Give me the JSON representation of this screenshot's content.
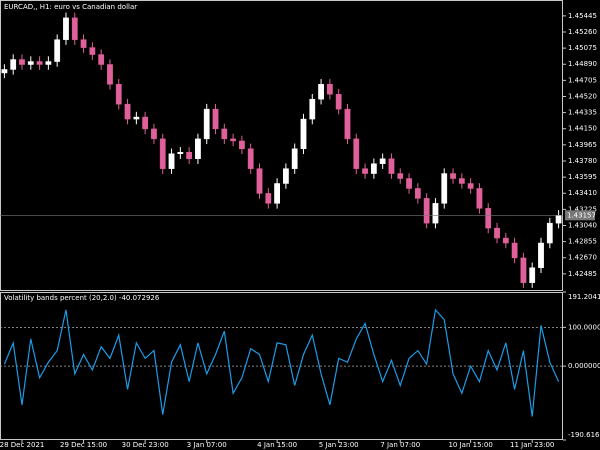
{
  "chart_data": [
    {
      "type": "candlestick",
      "title": "EURCAD,, H1:  euro vs Canadian dollar",
      "categories": [
        null,
        null,
        "28 Dec 2021",
        null,
        null,
        null,
        null,
        null,
        null,
        "29 Dec 15:00",
        null,
        null,
        null,
        null,
        null,
        null,
        "30 Dec 23:00",
        null,
        null,
        null,
        null,
        null,
        null,
        "3 Jan 07:00",
        null,
        null,
        null,
        null,
        null,
        null,
        null,
        "4 Jan 15:00",
        null,
        null,
        null,
        null,
        null,
        null,
        "5 Jan 23:00",
        null,
        null,
        null,
        null,
        null,
        null,
        "7 Jan 07:00",
        null,
        null,
        null,
        null,
        null,
        null,
        null,
        "10 Jan 15:00",
        null,
        null,
        null,
        null,
        null,
        null,
        "11 Jan 23:00",
        null,
        null,
        null
      ],
      "open": [
        1.4479,
        1.4483,
        1.44944,
        1.44887,
        1.44921,
        1.44887,
        1.44921,
        1.45172,
        1.45422,
        1.45172,
        1.45081,
        1.45001,
        1.44887,
        1.4466,
        1.44432,
        1.44261,
        1.44284,
        1.44148,
        1.44034,
        1.43692,
        1.43863,
        1.4388,
        1.43806,
        1.44034,
        1.44375,
        1.44148,
        1.44034,
        1.4401,
        1.4392,
        1.43692,
        1.43408,
        1.43294,
        1.43522,
        1.43692,
        1.4392,
        1.44261,
        1.44489,
        1.4466,
        1.44546,
        1.44375,
        1.44034,
        1.43692,
        1.43636,
        1.43749,
        1.43806,
        1.43636,
        1.43579,
        1.43465,
        1.43351,
        1.43067,
        1.43294,
        1.43636,
        1.43579,
        1.43522,
        1.43465,
        1.43237,
        1.4301,
        1.42896,
        1.42839,
        1.42668,
        1.42384,
        1.42555,
        1.42839,
        1.43067
      ],
      "high": [
        1.4489,
        1.45004,
        1.45004,
        1.44981,
        1.44981,
        1.44981,
        1.45232,
        1.45482,
        1.45482,
        1.45232,
        1.45141,
        1.45061,
        1.44947,
        1.4472,
        1.44492,
        1.44344,
        1.44344,
        1.44208,
        1.44094,
        1.43923,
        1.4394,
        1.4394,
        1.44094,
        1.44435,
        1.44435,
        1.44208,
        1.44094,
        1.4407,
        1.4398,
        1.43752,
        1.43468,
        1.43582,
        1.43752,
        1.4398,
        1.44321,
        1.44549,
        1.4472,
        1.4472,
        1.44606,
        1.44435,
        1.44094,
        1.43752,
        1.43809,
        1.43866,
        1.43866,
        1.43696,
        1.43639,
        1.43525,
        1.43411,
        1.43354,
        1.43696,
        1.43696,
        1.43639,
        1.43582,
        1.43525,
        1.43297,
        1.4307,
        1.42956,
        1.42899,
        1.42728,
        1.42615,
        1.42899,
        1.43127,
        1.43217
      ],
      "low": [
        1.4473,
        1.4477,
        1.44827,
        1.44827,
        1.44827,
        1.44827,
        1.44861,
        1.45112,
        1.45112,
        1.45021,
        1.44941,
        1.44827,
        1.446,
        1.44372,
        1.44201,
        1.44201,
        1.44088,
        1.43974,
        1.43632,
        1.43632,
        1.43803,
        1.43746,
        1.43746,
        1.43974,
        1.44088,
        1.43974,
        1.4395,
        1.4386,
        1.43632,
        1.43348,
        1.43234,
        1.43234,
        1.43462,
        1.43632,
        1.4386,
        1.44201,
        1.44429,
        1.44486,
        1.44315,
        1.43974,
        1.43632,
        1.43576,
        1.43576,
        1.43689,
        1.43576,
        1.43519,
        1.43405,
        1.43291,
        1.43007,
        1.43007,
        1.43234,
        1.43519,
        1.43462,
        1.43405,
        1.43177,
        1.4295,
        1.42836,
        1.42779,
        1.42608,
        1.42324,
        1.42324,
        1.42495,
        1.42779,
        1.43007
      ],
      "close": [
        1.4483,
        1.44944,
        1.44887,
        1.44921,
        1.44887,
        1.44921,
        1.45172,
        1.45422,
        1.45172,
        1.45081,
        1.45001,
        1.44887,
        1.4466,
        1.44432,
        1.44261,
        1.44284,
        1.44148,
        1.44034,
        1.43692,
        1.43863,
        1.4388,
        1.43806,
        1.44034,
        1.44375,
        1.44148,
        1.44034,
        1.4401,
        1.4392,
        1.43692,
        1.43408,
        1.43294,
        1.43522,
        1.43692,
        1.4392,
        1.44261,
        1.44489,
        1.4466,
        1.44546,
        1.44375,
        1.44034,
        1.43692,
        1.43636,
        1.43749,
        1.43806,
        1.43636,
        1.43579,
        1.43465,
        1.43351,
        1.43067,
        1.43294,
        1.43636,
        1.43579,
        1.43522,
        1.43465,
        1.43237,
        1.4301,
        1.42896,
        1.42839,
        1.42668,
        1.42384,
        1.42555,
        1.42839,
        1.43067,
        1.43157
      ],
      "up_color": "#ffffff",
      "down_color": "#e0609a",
      "last_price": 1.43157,
      "ylim": [
        1.423,
        1.45627
      ],
      "yticks": [
        1.45445,
        {
          "value": 1.4526,
          "label": "1.45260"
        },
        1.45075,
        {
          "value": 1.4489,
          "label": "1.44890"
        },
        1.44705,
        {
          "value": 1.4452,
          "label": "1.44520"
        },
        1.44335,
        {
          "value": 1.4415,
          "label": "1.44150"
        },
        1.43965,
        {
          "value": 1.4378,
          "label": "1.43780"
        },
        1.43595,
        {
          "value": 1.4341,
          "label": "1.43410"
        },
        1.43225,
        {
          "value": 1.4304,
          "label": "1.43040"
        },
        1.42855,
        {
          "value": 1.4267,
          "label": "1.42670"
        },
        1.42485
      ]
    },
    {
      "type": "line",
      "title": "Volatility bands percent (20,2.0) -40.072926",
      "series": [
        {
          "name": "Volatility bands percent",
          "color": "#1c9ce8",
          "values": [
            5,
            60,
            -100,
            70,
            -30,
            10,
            40,
            145,
            -20,
            30,
            -10,
            50,
            20,
            80,
            -60,
            60,
            20,
            40,
            -125,
            10,
            55,
            -40,
            60,
            -20,
            30,
            90,
            -70,
            -30,
            45,
            30,
            -40,
            60,
            55,
            -50,
            30,
            80,
            -20,
            -100,
            20,
            10,
            70,
            110,
            30,
            -40,
            15,
            -50,
            20,
            40,
            5,
            145,
            120,
            -20,
            -70,
            0,
            -40,
            40,
            -10,
            60,
            -60,
            40,
            -130,
            105,
            10,
            -40
          ]
        }
      ],
      "levels": [
        {
          "value": 100,
          "label": "100.000000"
        },
        {
          "value": 0,
          "label": "0.000000"
        }
      ],
      "ylim": [
        -190.616327,
        191.204172
      ],
      "yticks": [
        {
          "value": 191.204172,
          "label": "191.204172"
        },
        {
          "value": 100,
          "label": "100.000000"
        },
        {
          "value": 0,
          "label": "0.000000"
        },
        {
          "value": -190.616327,
          "label": "-190.616327"
        }
      ]
    }
  ]
}
